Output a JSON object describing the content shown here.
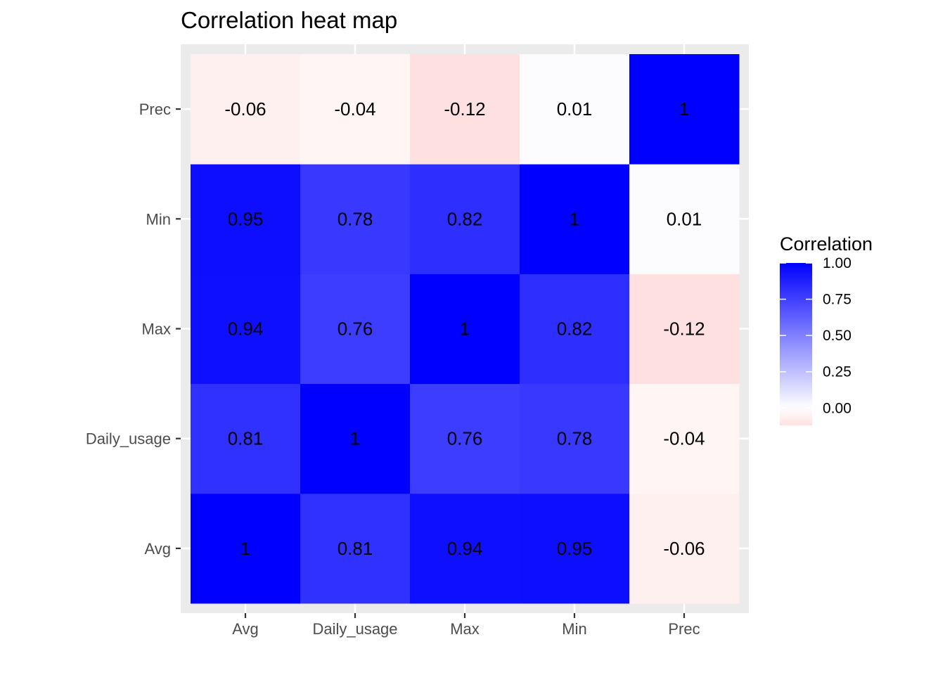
{
  "chart_data": {
    "type": "heatmap",
    "title": "Correlation heat map",
    "xlabel": "",
    "ylabel": "",
    "x_categories": [
      "Avg",
      "Daily_usage",
      "Max",
      "Min",
      "Prec"
    ],
    "y_categories": [
      "Avg",
      "Daily_usage",
      "Max",
      "Min",
      "Prec"
    ],
    "values": [
      [
        1,
        0.81,
        0.94,
        0.95,
        -0.06
      ],
      [
        0.81,
        1,
        0.76,
        0.78,
        -0.04
      ],
      [
        0.94,
        0.76,
        1,
        0.82,
        -0.12
      ],
      [
        0.95,
        0.78,
        0.82,
        1,
        0.01
      ],
      [
        -0.06,
        -0.04,
        -0.12,
        0.01,
        1
      ]
    ],
    "labels": [
      [
        "1",
        "0.81",
        "0.94",
        "0.95",
        "-0.06"
      ],
      [
        "0.81",
        "1",
        "0.76",
        "0.78",
        "-0.04"
      ],
      [
        "0.94",
        "0.76",
        "1",
        "0.82",
        "-0.12"
      ],
      [
        "0.95",
        "0.78",
        "0.82",
        "1",
        "0.01"
      ],
      [
        "-0.06",
        "-0.04",
        "-0.12",
        "0.01",
        "1"
      ]
    ],
    "legend": {
      "title": "Correlation",
      "position": "right",
      "breaks": [
        0,
        0.25,
        0.5,
        0.75,
        1
      ],
      "break_labels": [
        "0.00",
        "0.25",
        "0.50",
        "0.75",
        "1.00"
      ],
      "range": [
        -0.12,
        1
      ]
    },
    "colors": {
      "low": "#ff0000",
      "mid": "#ffffff",
      "high": "#0000ff",
      "panel_background": "#ebebeb",
      "grid": "#ffffff",
      "tick_text": "#4d4d4d"
    },
    "grid": true
  }
}
